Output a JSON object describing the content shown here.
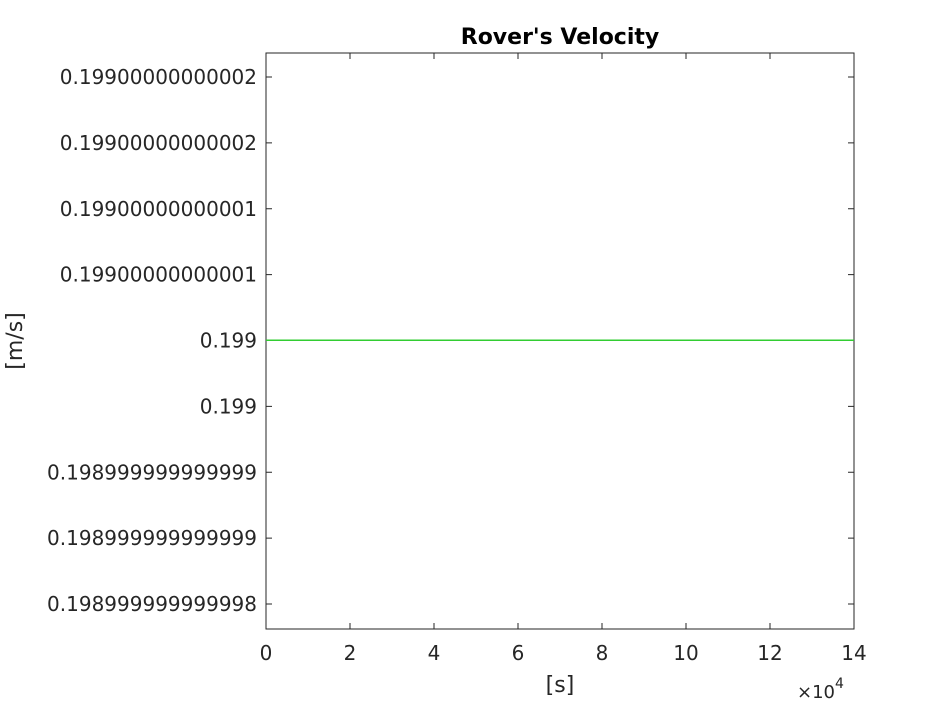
{
  "chart_data": {
    "type": "line",
    "title": "Rover's Velocity",
    "xlabel": "[s]",
    "ylabel": "[m/s]",
    "x_exponent_label": "×10",
    "x_exponent_power": "4",
    "xlim": [
      0,
      140000
    ],
    "x_tick_values": [
      0,
      20000,
      40000,
      60000,
      80000,
      100000,
      120000,
      140000
    ],
    "x_tick_labels": [
      "0",
      "2",
      "4",
      "6",
      "8",
      "10",
      "12",
      "14"
    ],
    "y_tick_labels": [
      "0.19900000000002",
      "0.19900000000002",
      "0.19900000000001",
      "0.19900000000001",
      "0.199",
      "0.199",
      "0.198999999999999",
      "0.198999999999999",
      "0.198999999999998"
    ],
    "y_tick_values": [
      0.19900000000002,
      0.199000000000015,
      0.19900000000001,
      0.199000000000005,
      0.199,
      0.198999999999995,
      0.19899999999999,
      0.198999999999985,
      0.19899999999998
    ],
    "series": [
      {
        "color": "#32cd32",
        "x": [
          0,
          20000,
          40000,
          60000,
          80000,
          100000,
          120000,
          140000
        ],
        "y": [
          0.199,
          0.199,
          0.199,
          0.199,
          0.199,
          0.199,
          0.199,
          0.199
        ]
      }
    ],
    "grid": false,
    "colors": {
      "axis": "#262626",
      "title": "#000000",
      "series": "#32cd32"
    }
  }
}
